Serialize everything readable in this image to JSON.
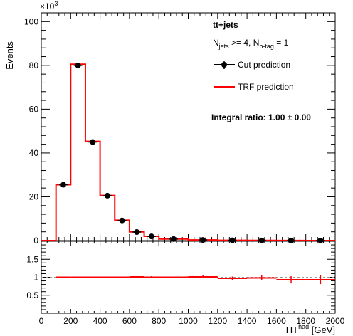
{
  "chart_data": [
    {
      "type": "line",
      "panel": "main",
      "title": "",
      "xlabel": "HT",
      "xlabel_sup": "had",
      "xlabel_unit": " [GeV]",
      "ylabel": "Events",
      "y_multiplier": "×10",
      "y_multiplier_exp": "3",
      "xlim": [
        0,
        2000
      ],
      "ylim": [
        0,
        104000
      ],
      "x_ticks": [
        "0",
        "200",
        "400",
        "600",
        "800",
        "1000",
        "1200",
        "1400",
        "1600",
        "1800",
        "2000"
      ],
      "y_ticks": [
        "0",
        "20",
        "40",
        "60",
        "80",
        "100"
      ],
      "grid": false,
      "bin_edges": [
        0,
        100,
        200,
        300,
        400,
        500,
        600,
        700,
        800,
        1000,
        1200,
        1400,
        1600,
        1800,
        2000
      ],
      "series": [
        {
          "name": "Cut prediction",
          "style": "markers-with-errors",
          "color": "#000000",
          "x": [
            150,
            250,
            350,
            450,
            550,
            650,
            750,
            900,
            1100,
            1300,
            1500,
            1700,
            1900
          ],
          "y": [
            25500,
            80000,
            45000,
            20500,
            9200,
            3900,
            1900,
            700,
            280,
            120,
            60,
            30,
            15
          ]
        },
        {
          "name": "TRF prediction",
          "style": "histogram",
          "color": "#ff0000",
          "values": [
            0,
            25500,
            80500,
            45300,
            20600,
            9300,
            4000,
            1950,
            720,
            290,
            125,
            62,
            31,
            16
          ]
        }
      ],
      "legend": {
        "placement": "top-right",
        "process": "tt̄+jets",
        "selection_main": "N",
        "selection_jets_sub": "jets",
        "selection_mid": " >= 4, N",
        "selection_btag_sub": "b-tag",
        "selection_end": " = 1",
        "integral": "Integral ratio: 1.00 ± 0.00"
      }
    },
    {
      "type": "line",
      "panel": "ratio",
      "xlim": [
        0,
        2000
      ],
      "ylim": [
        0,
        2
      ],
      "y_ticks": [
        "0.5",
        "1",
        "1.5"
      ],
      "reference_line": 1,
      "series": [
        {
          "name": "ratio",
          "color": "#ff0000",
          "x": [
            150,
            250,
            350,
            450,
            550,
            650,
            750,
            900,
            1100,
            1300,
            1500,
            1700,
            1900
          ],
          "xerr": [
            50,
            50,
            50,
            50,
            50,
            50,
            50,
            100,
            100,
            100,
            100,
            100,
            100
          ],
          "y": [
            1.0,
            1.0,
            1.0,
            1.0,
            1.0,
            1.01,
            1.0,
            1.0,
            1.01,
            0.97,
            0.98,
            0.93,
            0.93
          ],
          "yerr": [
            0.01,
            0.005,
            0.008,
            0.01,
            0.015,
            0.02,
            0.03,
            0.02,
            0.04,
            0.05,
            0.07,
            0.1,
            0.12
          ]
        }
      ]
    }
  ]
}
